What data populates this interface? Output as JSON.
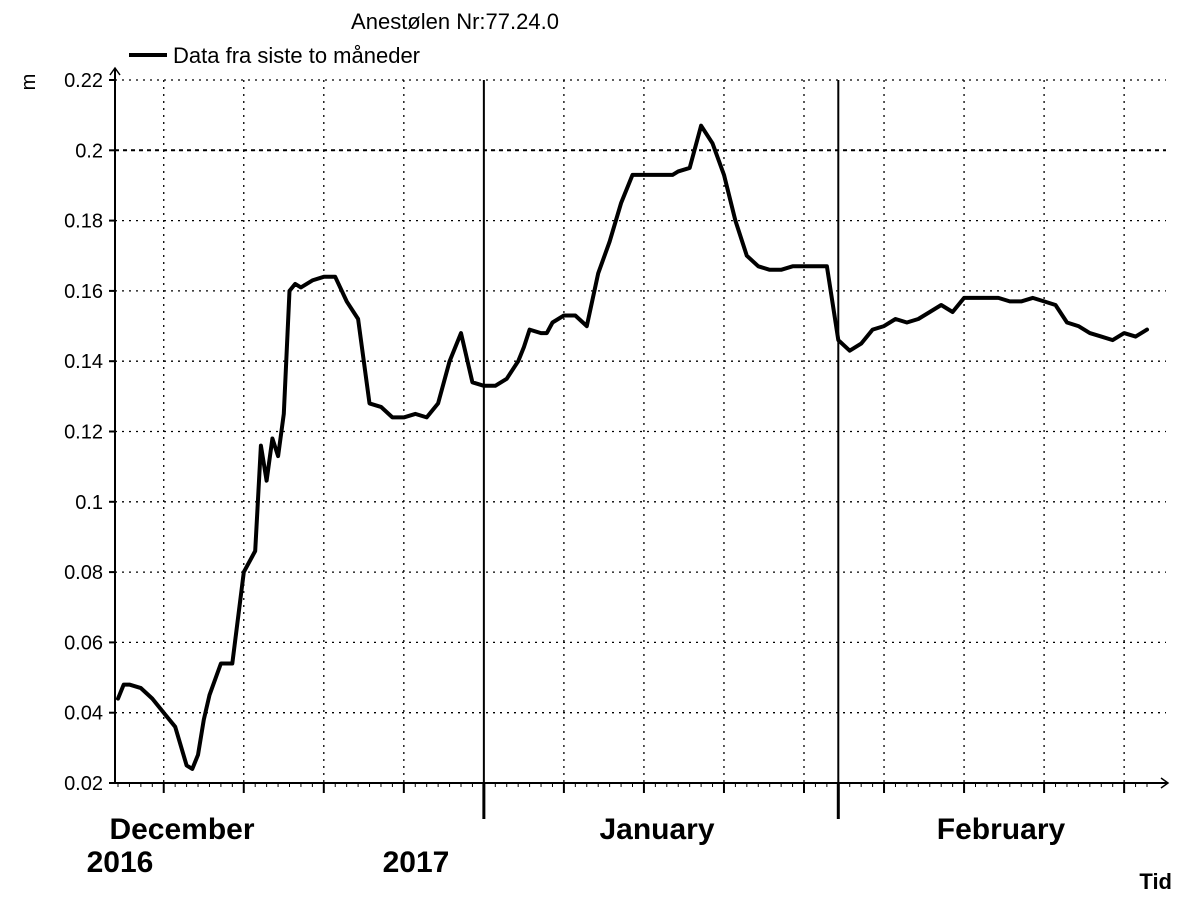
{
  "chart_data": {
    "type": "line",
    "title": "Anestølen Nr:77.24.0",
    "ylabel": "m",
    "xlabel": "Tid",
    "ylim": [
      0.02,
      0.22
    ],
    "yticks": [
      0.02,
      0.04,
      0.06,
      0.08,
      0.1,
      0.12,
      0.14,
      0.16,
      0.18,
      0.2,
      0.22
    ],
    "ytick_labels": [
      "0.02",
      "0.04",
      "0.06",
      "0.08",
      "0.1",
      "0.12",
      "0.14",
      "0.16",
      "0.18",
      "0.2",
      "0.22"
    ],
    "xlim": [
      "2016-11-30",
      "2017-02-28"
    ],
    "x_labels": [
      {
        "date": "2016-12-01",
        "text": "December",
        "year": "2016"
      },
      {
        "date": "2017-01-01",
        "text": "",
        "year": "2017"
      },
      {
        "date": "2017-01-15",
        "text": "January",
        "year": ""
      },
      {
        "date": "2017-02-01",
        "text": "February",
        "year": ""
      }
    ],
    "grid": true,
    "legend_position": "top-left",
    "series": [
      {
        "name": "Data fra siste to måneder",
        "color": "#000000",
        "x": [
          "2016-11-30",
          "2016-11-30T12:00",
          "2016-12-01",
          "2016-12-02",
          "2016-12-03",
          "2016-12-04",
          "2016-12-05",
          "2016-12-06",
          "2016-12-06T12:00",
          "2016-12-07",
          "2016-12-07T12:00",
          "2016-12-08",
          "2016-12-09",
          "2016-12-10",
          "2016-12-11",
          "2016-12-12",
          "2016-12-12T12:00",
          "2016-12-13",
          "2016-12-13T12:00",
          "2016-12-14",
          "2016-12-14T12:00",
          "2016-12-15",
          "2016-12-15T12:00",
          "2016-12-16",
          "2016-12-17",
          "2016-12-18",
          "2016-12-19",
          "2016-12-20",
          "2016-12-21",
          "2016-12-22",
          "2016-12-23",
          "2016-12-24",
          "2016-12-25",
          "2016-12-26",
          "2016-12-27",
          "2016-12-28",
          "2016-12-29",
          "2016-12-30",
          "2016-12-31",
          "2017-01-01",
          "2017-01-02",
          "2017-01-03",
          "2017-01-04",
          "2017-01-04T12:00",
          "2017-01-05",
          "2017-01-06",
          "2017-01-06T12:00",
          "2017-01-07",
          "2017-01-08",
          "2017-01-09",
          "2017-01-10",
          "2017-01-11",
          "2017-01-12",
          "2017-01-13",
          "2017-01-14",
          "2017-01-15",
          "2017-01-16",
          "2017-01-17",
          "2017-01-17T12:00",
          "2017-01-18",
          "2017-01-19",
          "2017-01-20",
          "2017-01-21",
          "2017-01-22",
          "2017-01-23",
          "2017-01-24",
          "2017-01-25",
          "2017-01-26",
          "2017-01-27",
          "2017-01-28",
          "2017-01-29",
          "2017-01-30",
          "2017-01-31",
          "2017-02-01",
          "2017-02-02",
          "2017-02-03",
          "2017-02-04",
          "2017-02-05",
          "2017-02-06",
          "2017-02-07",
          "2017-02-08",
          "2017-02-09",
          "2017-02-10",
          "2017-02-11",
          "2017-02-12",
          "2017-02-13",
          "2017-02-14",
          "2017-02-15",
          "2017-02-16",
          "2017-02-17",
          "2017-02-18",
          "2017-02-19",
          "2017-02-20",
          "2017-02-21",
          "2017-02-22",
          "2017-02-23",
          "2017-02-24",
          "2017-02-25",
          "2017-02-26",
          "2017-02-27",
          "2017-02-28"
        ],
        "y": [
          0.044,
          0.048,
          0.048,
          0.047,
          0.044,
          0.04,
          0.036,
          0.025,
          0.024,
          0.028,
          0.038,
          0.045,
          0.054,
          0.054,
          0.08,
          0.086,
          0.116,
          0.106,
          0.118,
          0.113,
          0.125,
          0.16,
          0.162,
          0.161,
          0.163,
          0.164,
          0.164,
          0.157,
          0.152,
          0.128,
          0.127,
          0.124,
          0.124,
          0.125,
          0.124,
          0.128,
          0.14,
          0.148,
          0.134,
          0.133,
          0.133,
          0.135,
          0.14,
          0.144,
          0.149,
          0.148,
          0.148,
          0.151,
          0.153,
          0.153,
          0.15,
          0.165,
          0.174,
          0.185,
          0.193,
          0.193,
          0.193,
          0.193,
          0.193,
          0.194,
          0.195,
          0.207,
          0.202,
          0.193,
          0.18,
          0.17,
          0.167,
          0.166,
          0.166,
          0.167,
          0.167,
          0.167,
          0.167,
          0.146,
          0.143,
          0.145,
          0.149,
          0.15,
          0.152,
          0.151,
          0.152,
          0.154,
          0.156,
          0.154,
          0.158,
          0.158,
          0.158,
          0.158,
          0.157,
          0.157,
          0.158,
          0.157,
          0.156,
          0.151,
          0.15,
          0.148,
          0.147,
          0.146,
          0.148,
          0.147,
          0.149
        ]
      }
    ]
  }
}
